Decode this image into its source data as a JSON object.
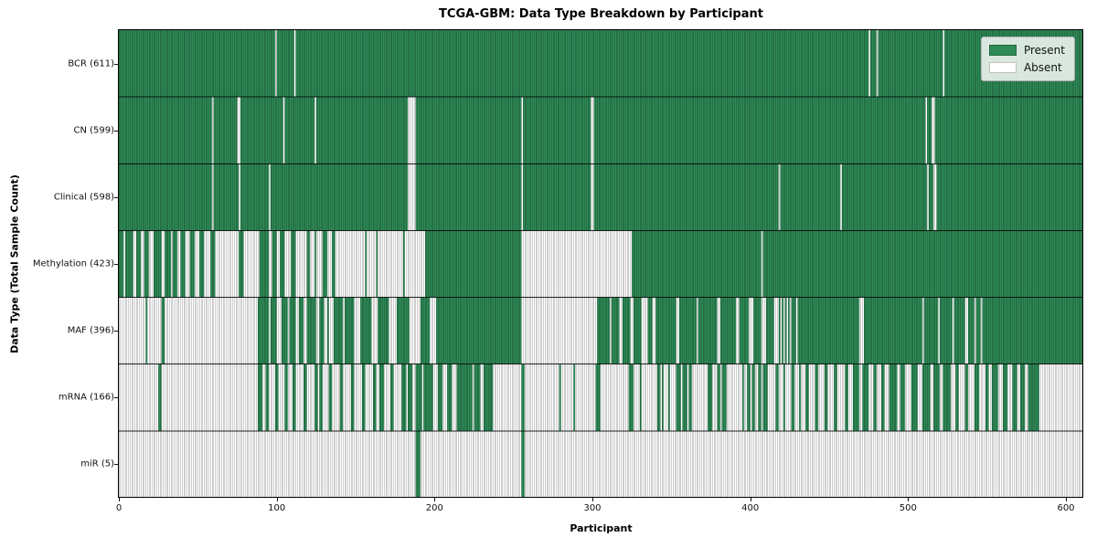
{
  "title": "TCGA-GBM: Data Type Breakdown by Participant",
  "x_axis": {
    "label": "Participant",
    "tick_labels": [
      "0",
      "100",
      "200",
      "300",
      "400",
      "500",
      "600"
    ]
  },
  "y_axis": {
    "label": "Data Type (Total Sample Count)"
  },
  "legend": {
    "present_label": "Present",
    "absent_label": "Absent"
  },
  "colors": {
    "present": "#2e8b57",
    "absent": "#ffffff",
    "cell_edge": "rgba(0,0,0,0.38)",
    "row_separator": "rgba(0,0,0,0.85)",
    "axis": "#000000"
  },
  "chart_data": {
    "type": "heatmap",
    "title": "TCGA-GBM: Data Type Breakdown by Participant",
    "xlabel": "Participant",
    "ylabel": "Data Type (Total Sample Count)",
    "xlim": [
      0,
      611
    ],
    "x_ticks": [
      0,
      100,
      200,
      300,
      400,
      500,
      600
    ],
    "n_participants": 611,
    "legend_entries": [
      "Present",
      "Absent"
    ],
    "legend_position": "upper right",
    "grid": false,
    "note": "Each row is a data type; each thin column is one participant. Green cell = data present, white cell = data absent. Runs are inclusive participant-index ranges [start,end] estimated from the figure.",
    "rows": [
      {
        "label": "BCR (611)",
        "data_type": "BCR",
        "total_sample_count": 611,
        "default": "present",
        "absent_runs": [
          [
            99,
            99
          ],
          [
            111,
            111
          ],
          [
            475,
            475
          ],
          [
            480,
            480
          ],
          [
            522,
            522
          ]
        ]
      },
      {
        "label": "CN (599)",
        "data_type": "CN",
        "total_sample_count": 599,
        "default": "present",
        "absent_runs": [
          [
            59,
            59
          ],
          [
            75,
            76
          ],
          [
            104,
            104
          ],
          [
            124,
            124
          ],
          [
            183,
            187
          ],
          [
            255,
            255
          ],
          [
            299,
            300
          ],
          [
            511,
            511
          ],
          [
            515,
            516
          ]
        ]
      },
      {
        "label": "Clinical (598)",
        "data_type": "Clinical",
        "total_sample_count": 598,
        "default": "present",
        "absent_runs": [
          [
            59,
            59
          ],
          [
            76,
            76
          ],
          [
            95,
            95
          ],
          [
            183,
            187
          ],
          [
            255,
            255
          ],
          [
            299,
            300
          ],
          [
            418,
            418
          ],
          [
            457,
            457
          ],
          [
            512,
            512
          ],
          [
            516,
            517
          ]
        ]
      },
      {
        "label": "Methylation (423)",
        "data_type": "Methylation",
        "total_sample_count": 423,
        "default": "present",
        "absent_runs": [
          [
            3,
            3
          ],
          [
            9,
            10
          ],
          [
            14,
            15
          ],
          [
            19,
            21
          ],
          [
            27,
            28
          ],
          [
            33,
            33
          ],
          [
            37,
            38
          ],
          [
            42,
            44
          ],
          [
            48,
            50
          ],
          [
            54,
            57
          ],
          [
            61,
            75
          ],
          [
            79,
            88
          ],
          [
            95,
            96
          ],
          [
            100,
            101
          ],
          [
            105,
            108
          ],
          [
            112,
            118
          ],
          [
            121,
            123
          ],
          [
            125,
            128
          ],
          [
            132,
            134
          ],
          [
            137,
            155
          ],
          [
            157,
            162
          ],
          [
            164,
            179
          ],
          [
            181,
            193
          ],
          [
            255,
            324
          ],
          [
            407,
            407
          ]
        ]
      },
      {
        "label": "MAF (396)",
        "data_type": "MAF",
        "total_sample_count": 396,
        "default": "present",
        "absent_runs": [
          [
            0,
            16
          ],
          [
            18,
            26
          ],
          [
            29,
            87
          ],
          [
            95,
            95
          ],
          [
            100,
            102
          ],
          [
            107,
            107
          ],
          [
            112,
            113
          ],
          [
            117,
            118
          ],
          [
            125,
            126
          ],
          [
            130,
            131
          ],
          [
            133,
            135
          ],
          [
            142,
            142
          ],
          [
            149,
            152
          ],
          [
            160,
            163
          ],
          [
            171,
            175
          ],
          [
            184,
            190
          ],
          [
            197,
            200
          ],
          [
            255,
            302
          ],
          [
            311,
            311
          ],
          [
            317,
            318
          ],
          [
            324,
            325
          ],
          [
            331,
            334
          ],
          [
            338,
            339
          ],
          [
            353,
            354
          ],
          [
            366,
            366
          ],
          [
            379,
            380
          ],
          [
            391,
            392
          ],
          [
            399,
            401
          ],
          [
            407,
            409
          ],
          [
            415,
            417
          ],
          [
            419,
            419
          ],
          [
            421,
            421
          ],
          [
            423,
            423
          ],
          [
            425,
            425
          ],
          [
            429,
            429
          ],
          [
            469,
            471
          ],
          [
            509,
            509
          ],
          [
            519,
            519
          ],
          [
            528,
            528
          ],
          [
            536,
            537
          ],
          [
            542,
            542
          ],
          [
            546,
            546
          ]
        ]
      },
      {
        "label": "mRNA (166)",
        "data_type": "mRNA",
        "total_sample_count": 166,
        "default": "absent",
        "present_runs": [
          [
            25,
            26
          ],
          [
            88,
            90
          ],
          [
            93,
            94
          ],
          [
            99,
            100
          ],
          [
            105,
            106
          ],
          [
            110,
            111
          ],
          [
            117,
            118
          ],
          [
            124,
            125
          ],
          [
            127,
            128
          ],
          [
            133,
            134
          ],
          [
            140,
            141
          ],
          [
            147,
            148
          ],
          [
            154,
            155
          ],
          [
            161,
            162
          ],
          [
            165,
            167
          ],
          [
            172,
            173
          ],
          [
            179,
            181
          ],
          [
            183,
            185
          ],
          [
            188,
            191
          ],
          [
            193,
            198
          ],
          [
            202,
            204
          ],
          [
            208,
            210
          ],
          [
            214,
            223
          ],
          [
            225,
            228
          ],
          [
            231,
            236
          ],
          [
            255,
            256
          ],
          [
            279,
            279
          ],
          [
            288,
            288
          ],
          [
            302,
            304
          ],
          [
            323,
            325
          ],
          [
            330,
            330
          ],
          [
            341,
            342
          ],
          [
            344,
            344
          ],
          [
            348,
            348
          ],
          [
            353,
            355
          ],
          [
            357,
            359
          ],
          [
            361,
            362
          ],
          [
            373,
            375
          ],
          [
            379,
            380
          ],
          [
            382,
            384
          ],
          [
            395,
            395
          ],
          [
            398,
            399
          ],
          [
            401,
            402
          ],
          [
            405,
            406
          ],
          [
            408,
            410
          ],
          [
            416,
            417
          ],
          [
            421,
            421
          ],
          [
            426,
            427
          ],
          [
            431,
            431
          ],
          [
            435,
            436
          ],
          [
            441,
            442
          ],
          [
            447,
            448
          ],
          [
            453,
            454
          ],
          [
            460,
            461
          ],
          [
            465,
            468
          ],
          [
            471,
            474
          ],
          [
            478,
            479
          ],
          [
            483,
            484
          ],
          [
            488,
            492
          ],
          [
            495,
            497
          ],
          [
            502,
            505
          ],
          [
            509,
            513
          ],
          [
            516,
            519
          ],
          [
            522,
            526
          ],
          [
            530,
            531
          ],
          [
            536,
            537
          ],
          [
            542,
            544
          ],
          [
            549,
            550
          ],
          [
            553,
            556
          ],
          [
            560,
            562
          ],
          [
            566,
            568
          ],
          [
            571,
            573
          ],
          [
            576,
            582
          ]
        ]
      },
      {
        "label": "miR (5)",
        "data_type": "miR",
        "total_sample_count": 5,
        "default": "absent",
        "present_runs": [
          [
            188,
            190
          ],
          [
            255,
            256
          ]
        ]
      }
    ]
  }
}
